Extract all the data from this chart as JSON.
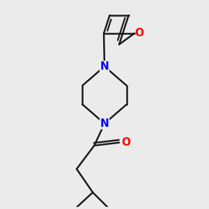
{
  "background_color": "#ebebeb",
  "bond_color": "#1a1a1a",
  "nitrogen_color": "#0000ff",
  "oxygen_color": "#ff0000",
  "line_width": 1.8,
  "font_size_atom": 11,
  "fig_w": 3.0,
  "fig_h": 3.0,
  "dpi": 100,
  "xlim": [
    -2.5,
    2.5
  ],
  "ylim": [
    -3.8,
    3.2
  ]
}
